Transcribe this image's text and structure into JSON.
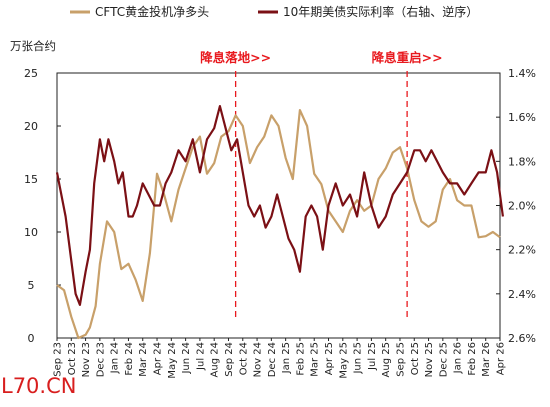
{
  "chart_data": {
    "type": "line",
    "title": "",
    "left_unit": "万张合约",
    "x_ticks": [
      "Sep 23",
      "Oct 23",
      "Nov 23",
      "Dec 23",
      "Jan 24",
      "Feb 24",
      "Mar 24",
      "Apr 24",
      "May 24",
      "Jun 24",
      "Jul 24",
      "Aug 24",
      "Sep 24",
      "Oct 24",
      "Nov 24",
      "Dec 24",
      "Jan 25",
      "Feb 25",
      "Mar 25",
      "Apr 25",
      "May 25",
      "Jun 25",
      "Jul 25",
      "Aug 25",
      "Sep 25",
      "Oct 25",
      "Nov 25",
      "Dec 25",
      "Jan 26",
      "Feb 26",
      "Mar 26",
      "Apr 26"
    ],
    "x_tick_words": [
      "Sep",
      "Oct",
      "Nov",
      "Dec",
      "Jan",
      "Feb",
      "Mar",
      "Apr",
      "May",
      "Jun",
      "Jul",
      "Aug",
      "Sep",
      "Oct",
      "Nov",
      "Dec",
      "Jan",
      "Feb",
      "Mar",
      "Apr",
      "May",
      "Jun",
      "Jul",
      "Aug",
      "Sep",
      "Oct",
      "Nov",
      "Dec",
      "Jan",
      "Feb",
      "Mar",
      "Apr"
    ],
    "x_tick_years": [
      "23",
      "23",
      "23",
      "23",
      "24",
      "24",
      "24",
      "24",
      "24",
      "24",
      "24",
      "24",
      "24",
      "24",
      "24",
      "24",
      "25",
      "25",
      "25",
      "25",
      "25",
      "25",
      "25",
      "25",
      "25",
      "25",
      "25",
      "25",
      "26",
      "26",
      "26",
      "26"
    ],
    "y_left": {
      "min": 0,
      "max": 25,
      "ticks": [
        "0",
        "5",
        "10",
        "15",
        "20",
        "25"
      ]
    },
    "y_right": {
      "min": 1.4,
      "max": 2.6,
      "inverted": true,
      "ticks": [
        "1.4%",
        "1.6%",
        "1.8%",
        "2.0%",
        "2.2%",
        "2.4%",
        "2.6%"
      ]
    },
    "legend_position": "top",
    "grid": false,
    "series": [
      {
        "name": "CFTC黄金投机净多头",
        "axis": "left",
        "color": "#c8a06a",
        "x_months": [
          0,
          0.5,
          1,
          1.5,
          2,
          2.3,
          2.7,
          3,
          3.5,
          4,
          4.5,
          5,
          5.5,
          6,
          6.5,
          7,
          7.5,
          8,
          8.5,
          9,
          9.5,
          10,
          10.5,
          11,
          11.5,
          12,
          12.5,
          13,
          13.5,
          14,
          14.5,
          15,
          15.5,
          16,
          16.5,
          17,
          17.5,
          18,
          18.5,
          19,
          19.5,
          20,
          20.5,
          21,
          21.5,
          22,
          22.5,
          23,
          23.5,
          24,
          24.5,
          25,
          25.5,
          26,
          26.5,
          27,
          27.5,
          28,
          28.5,
          29,
          29.5,
          30,
          30.5,
          31
        ],
        "values": [
          5,
          4.5,
          2,
          0,
          0.3,
          1,
          3,
          7,
          11,
          10,
          6.5,
          7,
          5.5,
          3.5,
          8,
          15.5,
          13.5,
          11,
          14,
          16,
          18,
          19,
          15.5,
          16.5,
          19,
          19.5,
          21,
          20,
          16.5,
          18,
          19,
          21,
          20,
          17,
          15,
          21.5,
          20,
          15.5,
          14.5,
          12,
          11,
          10,
          12,
          13,
          12,
          12.5,
          15,
          16,
          17.5,
          18,
          16,
          13,
          11,
          10.5,
          11,
          14,
          15,
          13,
          12.5,
          12.5,
          9.5,
          9.6,
          10,
          9.5
        ]
      },
      {
        "name": "10年期美债实际利率（右轴、逆序）",
        "axis": "right",
        "color": "#7b1015",
        "x_months": [
          0,
          0.3,
          0.6,
          1,
          1.3,
          1.6,
          2,
          2.3,
          2.6,
          3,
          3.3,
          3.6,
          4,
          4.3,
          4.6,
          5,
          5.3,
          5.6,
          6,
          6.4,
          6.8,
          7.2,
          7.6,
          8,
          8.5,
          9,
          9.5,
          10,
          10.5,
          11,
          11.4,
          11.8,
          12.2,
          12.6,
          13,
          13.4,
          13.8,
          14.2,
          14.6,
          15,
          15.4,
          15.8,
          16.2,
          16.6,
          17,
          17.4,
          17.8,
          18.2,
          18.6,
          19,
          19.5,
          20,
          20.5,
          21,
          21.5,
          22,
          22.5,
          23,
          23.5,
          24,
          24.5,
          25,
          25.4,
          25.8,
          26.2,
          26.6,
          27,
          27.5,
          28,
          28.5,
          29,
          29.5,
          30,
          30.4,
          30.8,
          31,
          31.2
        ],
        "values": [
          1.85,
          1.95,
          2.05,
          2.25,
          2.4,
          2.45,
          2.3,
          2.2,
          1.9,
          1.7,
          1.8,
          1.7,
          1.8,
          1.9,
          1.85,
          2.05,
          2.05,
          2.0,
          1.9,
          1.95,
          2.0,
          2.0,
          1.9,
          1.85,
          1.75,
          1.8,
          1.7,
          1.85,
          1.7,
          1.65,
          1.55,
          1.65,
          1.75,
          1.7,
          1.85,
          2.0,
          2.05,
          2.0,
          2.1,
          2.05,
          1.95,
          2.05,
          2.15,
          2.2,
          2.3,
          2.05,
          2.0,
          2.05,
          2.2,
          2.0,
          1.9,
          2.0,
          1.95,
          2.05,
          1.85,
          2.0,
          2.1,
          2.05,
          1.95,
          1.9,
          1.85,
          1.75,
          1.75,
          1.8,
          1.75,
          1.8,
          1.85,
          1.9,
          1.9,
          1.95,
          1.9,
          1.85,
          1.85,
          1.75,
          1.85,
          1.95,
          2.05
        ]
      }
    ],
    "annotations": [
      {
        "text": "降息落地>>",
        "x_month": 12.5
      },
      {
        "text": "降息重启>>",
        "x_month": 24.5
      }
    ]
  },
  "watermark": "L70.CN"
}
